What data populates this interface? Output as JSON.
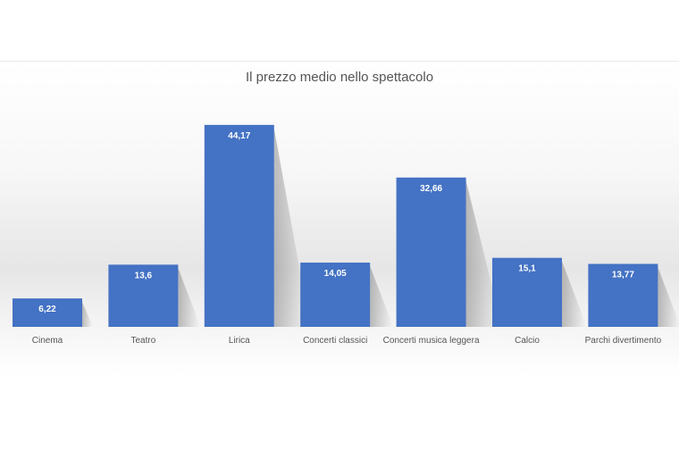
{
  "chart_data": {
    "type": "bar",
    "title": "Il prezzo medio nello spettacolo",
    "categories": [
      "Cinema",
      "Teatro",
      "Lirica",
      "Concerti classici",
      "Concerti musica leggera",
      "Calcio",
      "Parchi divertimento"
    ],
    "values": [
      6.22,
      13.6,
      44.17,
      14.05,
      32.66,
      15.1,
      13.77
    ],
    "value_labels": [
      "6,22",
      "13,6",
      "44,17",
      "14,05",
      "32,66",
      "15,1",
      "13,77"
    ],
    "xlabel": "",
    "ylabel": "",
    "ylim": [
      0,
      50
    ],
    "grid": false,
    "legend": "none",
    "bar_color": "#4472c4",
    "data_label_color": "#ffffff"
  }
}
